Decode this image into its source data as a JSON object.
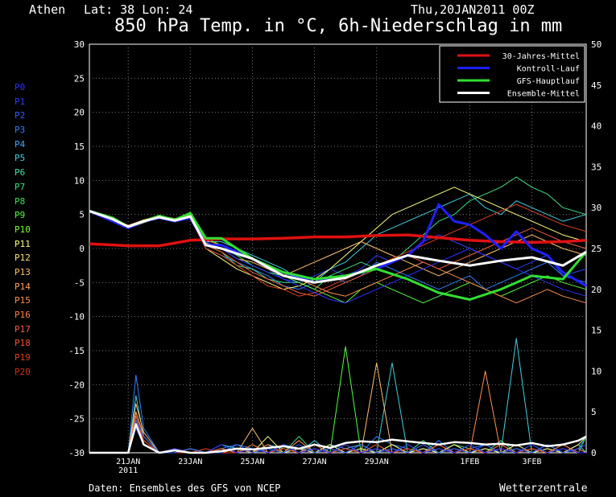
{
  "header": {
    "location": "Athen",
    "coords": "Lat: 38 Lon: 24",
    "date": "Thu,20JAN2011 00Z",
    "title": "850 hPa Temp. in °C, 6h-Niederschlag in mm"
  },
  "footer": {
    "source": "Daten: Ensembles des GFS von NCEP",
    "brand": "Wetterzentrale"
  },
  "members": [
    {
      "label": "P0",
      "color": "#3030ff"
    },
    {
      "label": "P1",
      "color": "#2a40ff"
    },
    {
      "label": "P2",
      "color": "#2a60ff"
    },
    {
      "label": "P3",
      "color": "#3080ff"
    },
    {
      "label": "P4",
      "color": "#40a8ff"
    },
    {
      "label": "P5",
      "color": "#40d0e0"
    },
    {
      "label": "P6",
      "color": "#40e0b0"
    },
    {
      "label": "P7",
      "color": "#40e080"
    },
    {
      "label": "P8",
      "color": "#40e050"
    },
    {
      "label": "P9",
      "color": "#50ff40"
    },
    {
      "label": "P10",
      "color": "#80ff30"
    },
    {
      "label": "P11",
      "color": "#ffff80"
    },
    {
      "label": "P12",
      "color": "#ffe080"
    },
    {
      "label": "P13",
      "color": "#ffc070"
    },
    {
      "label": "P14",
      "color": "#ffa060"
    },
    {
      "label": "P15",
      "color": "#ff9050"
    },
    {
      "label": "P16",
      "color": "#ff8040"
    },
    {
      "label": "P17",
      "color": "#f06040"
    },
    {
      "label": "P18",
      "color": "#f05030"
    },
    {
      "label": "P19",
      "color": "#e04020"
    },
    {
      "label": "P20",
      "color": "#d03010"
    }
  ],
  "chart_data": {
    "type": "line",
    "x_ticks": [
      "21JAN 2011",
      "23JAN",
      "25JAN",
      "27JAN",
      "29JAN",
      "1FEB",
      "3FEB"
    ],
    "x_tick_day": [
      1,
      3,
      5,
      7,
      9,
      12,
      14
    ],
    "x_range_days": [
      -0.25,
      15.75
    ],
    "y_left": {
      "range": [
        -30,
        30
      ],
      "ticks": [
        30,
        25,
        20,
        15,
        10,
        5,
        0,
        -5,
        -10,
        -15,
        -20,
        -25,
        -30
      ],
      "unit": "°C"
    },
    "y_right": {
      "range": [
        0,
        50
      ],
      "ticks": [
        50,
        45,
        40,
        35,
        30,
        25,
        20,
        15,
        10,
        5,
        0
      ],
      "unit": "mm"
    },
    "grid": true,
    "legend_position": "top-right",
    "legend": [
      {
        "label": "30-Jahres-Mittel",
        "color": "#e01010"
      },
      {
        "label": "Kontroll-Lauf",
        "color": "#2020ff"
      },
      {
        "label": "GFS-Hauptlauf",
        "color": "#30e030"
      },
      {
        "label": "Ensemble-Mittel",
        "color": "#ffffff"
      }
    ],
    "temperature_series": [
      {
        "name": "30-Jahres-Mittel",
        "color": "#e01010",
        "width": 3.5,
        "days": [
          -0.25,
          1,
          2,
          3,
          4,
          5,
          6,
          7,
          8,
          9,
          10,
          11,
          12,
          13,
          14,
          15,
          15.75
        ],
        "values": [
          0.7,
          0.4,
          0.4,
          1.2,
          1.4,
          1.4,
          1.5,
          1.7,
          1.7,
          1.9,
          2.0,
          1.6,
          1.2,
          1.0,
          0.9,
          1.0,
          1.2
        ]
      },
      {
        "name": "Kontroll-Lauf",
        "color": "#2020ff",
        "width": 3,
        "days": [
          -0.25,
          0.5,
          1,
          1.5,
          2,
          2.5,
          3,
          3.5,
          4,
          5,
          6,
          7,
          8,
          9,
          10,
          10.5,
          11,
          11.5,
          12,
          12.5,
          13,
          13.5,
          14,
          14.5,
          15,
          15.75
        ],
        "values": [
          5.5,
          4.0,
          3.0,
          4.0,
          4.5,
          4.0,
          4.5,
          0.5,
          0.5,
          -1.5,
          -3.5,
          -5.0,
          -4.0,
          -3.0,
          -1.0,
          1.0,
          6.5,
          4.0,
          3.5,
          2.0,
          0.0,
          2.5,
          0.0,
          -1.0,
          -3.5,
          -5.5
        ]
      },
      {
        "name": "GFS-Hauptlauf",
        "color": "#30e030",
        "width": 3,
        "days": [
          -0.25,
          0.5,
          1,
          1.5,
          2,
          2.5,
          3,
          3.5,
          4,
          5,
          6,
          7,
          8,
          9,
          10,
          11,
          12,
          13,
          14,
          15,
          15.75
        ],
        "values": [
          5.5,
          4.5,
          3.2,
          4.0,
          4.8,
          4.2,
          5.2,
          1.5,
          1.5,
          -1.5,
          -3.5,
          -4.5,
          -4.0,
          -3.0,
          -4.5,
          -6.5,
          -7.5,
          -6.0,
          -4.0,
          -4.5,
          -0.5
        ]
      },
      {
        "name": "Ensemble-Mittel",
        "color": "#ffffff",
        "width": 3,
        "days": [
          -0.25,
          0.5,
          1,
          1.5,
          2,
          2.5,
          3,
          3.5,
          4,
          5,
          6,
          7,
          8,
          9,
          10,
          11,
          12,
          13,
          14,
          15,
          15.75
        ],
        "values": [
          5.5,
          4.3,
          3.2,
          4.0,
          4.6,
          4.1,
          4.7,
          0.5,
          0.0,
          -1.5,
          -4.0,
          -5.0,
          -4.3,
          -2.5,
          -1.0,
          -1.8,
          -2.5,
          -1.8,
          -1.3,
          -2.5,
          -0.5
        ]
      }
    ],
    "member_temperature_days": [
      -0.25,
      0.5,
      1,
      1.5,
      2,
      2.5,
      3,
      3.5,
      4,
      4.5,
      5,
      5.5,
      6,
      6.5,
      7,
      7.5,
      8,
      8.5,
      9,
      9.5,
      10,
      10.5,
      11,
      11.5,
      12,
      12.5,
      13,
      13.5,
      14,
      14.5,
      15,
      15.75
    ],
    "member_temperature_values": [
      [
        5.5,
        4.2,
        3.0,
        4.0,
        4.5,
        4.2,
        4.8,
        0.5,
        0.0,
        -1.0,
        -1.5,
        -3.0,
        -4.5,
        -5.0,
        -4.0,
        -3.0,
        -4.0,
        -3.0,
        -1.0,
        -2.0,
        -1.0,
        1.0,
        2.0,
        1.0,
        0.0,
        -1.0,
        -2.0,
        -3.0,
        -2.0,
        -1.0,
        -4.0,
        -3.0
      ],
      [
        5.5,
        4.0,
        3.2,
        3.8,
        4.5,
        4.0,
        4.6,
        0.0,
        -1.0,
        -2.0,
        -3.0,
        -4.0,
        -5.5,
        -6.0,
        -5.0,
        -4.0,
        -5.0,
        -4.0,
        -2.0,
        -3.0,
        -4.0,
        -5.0,
        -6.0,
        -5.0,
        -4.0,
        -6.0,
        -5.0,
        -4.0,
        -3.0,
        -2.0,
        -4.0,
        -5.0
      ],
      [
        5.5,
        4.4,
        3.1,
        4.1,
        4.6,
        4.3,
        4.5,
        1.0,
        1.0,
        0.0,
        -1.0,
        -2.0,
        -3.0,
        -4.5,
        -5.0,
        -3.0,
        -2.0,
        0.0,
        2.0,
        3.0,
        4.0,
        5.0,
        6.0,
        7.0,
        8.0,
        6.0,
        5.0,
        7.0,
        6.0,
        5.0,
        4.0,
        5.0
      ],
      [
        5.5,
        4.1,
        3.0,
        3.9,
        4.4,
        4.0,
        4.4,
        0.5,
        -0.5,
        -2.5,
        -3.0,
        -4.5,
        -5.0,
        -5.0,
        -6.0,
        -4.0,
        -3.0,
        -2.0,
        -3.0,
        -2.0,
        0.0,
        2.0,
        4.0,
        5.0,
        7.0,
        8.0,
        9.0,
        10.5,
        9.0,
        8.0,
        6.0,
        5.0
      ],
      [
        5.5,
        4.3,
        3.3,
        4.2,
        4.7,
        4.2,
        4.7,
        1.5,
        0.5,
        -1.0,
        -2.5,
        -3.5,
        -4.0,
        -5.0,
        -6.0,
        -7.0,
        -8.0,
        -6.0,
        -5.0,
        -6.0,
        -7.0,
        -8.0,
        -7.0,
        -6.0,
        -5.0,
        -6.0,
        -7.0,
        -6.0,
        -5.0,
        -4.0,
        -5.0,
        -6.0
      ],
      [
        5.5,
        4.2,
        2.9,
        3.8,
        4.5,
        4.1,
        4.5,
        0.0,
        -1.5,
        -3.0,
        -4.0,
        -5.0,
        -6.0,
        -5.5,
        -4.5,
        -3.0,
        -1.0,
        1.0,
        3.0,
        5.0,
        6.0,
        7.0,
        8.0,
        9.0,
        8.0,
        7.0,
        6.0,
        5.0,
        4.0,
        3.0,
        2.0,
        1.0
      ],
      [
        5.5,
        4.0,
        3.1,
        4.0,
        4.6,
        4.3,
        4.6,
        0.8,
        0.0,
        -1.5,
        -2.0,
        -3.0,
        -4.0,
        -3.0,
        -2.0,
        -1.0,
        0.0,
        1.0,
        0.0,
        -1.0,
        -2.0,
        -3.0,
        -4.0,
        -3.0,
        -2.0,
        -1.0,
        0.0,
        1.0,
        2.0,
        1.0,
        0.0,
        -1.0
      ],
      [
        5.5,
        4.4,
        3.4,
        4.2,
        4.8,
        4.4,
        4.9,
        1.2,
        0.5,
        -0.5,
        -1.5,
        -2.5,
        -3.5,
        -4.5,
        -5.5,
        -6.5,
        -7.0,
        -6.0,
        -5.0,
        -4.0,
        -3.0,
        -2.0,
        -3.0,
        -4.0,
        -5.0,
        -6.0,
        -7.0,
        -8.0,
        -7.0,
        -6.0,
        -7.0,
        -8.0
      ],
      [
        5.5,
        4.3,
        3.2,
        4.0,
        4.6,
        4.1,
        4.6,
        0.5,
        -0.5,
        -2.0,
        -3.5,
        -4.5,
        -5.5,
        -6.5,
        -7.0,
        -6.0,
        -5.0,
        -4.0,
        -3.0,
        -2.0,
        -1.0,
        -2.0,
        -3.0,
        -2.0,
        -1.0,
        0.0,
        1.0,
        2.0,
        3.0,
        2.0,
        1.0,
        0.0
      ],
      [
        5.5,
        4.1,
        3.0,
        3.9,
        4.5,
        4.2,
        4.4,
        0.0,
        -1.0,
        -2.5,
        -4.0,
        -5.5,
        -6.0,
        -7.0,
        -6.5,
        -5.5,
        -4.5,
        -3.5,
        -2.5,
        -1.5,
        -0.5,
        0.5,
        1.5,
        2.5,
        3.5,
        4.5,
        5.5,
        6.5,
        5.5,
        4.5,
        3.5,
        2.5
      ],
      [
        5.5,
        4.2,
        3.1,
        4.1,
        4.7,
        4.3,
        4.7,
        1.0,
        0.0,
        -1.5,
        -2.5,
        -3.5,
        -4.5,
        -5.5,
        -6.5,
        -7.5,
        -8.0,
        -7.0,
        -6.0,
        -5.0,
        -4.0,
        -3.0,
        -2.0,
        -1.0,
        0.0,
        -1.0,
        -2.0,
        -3.0,
        -4.0,
        -5.0,
        -6.0,
        -7.0
      ]
    ],
    "member_precip_days": [
      -0.25,
      0.5,
      1,
      1.25,
      1.5,
      2,
      2.5,
      3,
      3.5,
      4,
      4.5,
      5,
      5.5,
      6,
      6.5,
      7,
      7.5,
      8,
      8.5,
      9,
      9.5,
      10,
      10.5,
      11,
      11.5,
      12,
      12.5,
      13,
      13.5,
      14,
      14.5,
      15,
      15.5,
      15.75
    ],
    "member_precip_values": [
      [
        0,
        0,
        0,
        9.5,
        3,
        0,
        0.5,
        0,
        0,
        0.5,
        1,
        0.5,
        0,
        1,
        0.5,
        0,
        1,
        0.5,
        0,
        2,
        1,
        0.5,
        0,
        1.5,
        0,
        0.5,
        1,
        0,
        0.5,
        0,
        1,
        0,
        0.5,
        2
      ],
      [
        0,
        0,
        0,
        7,
        2,
        0,
        0.5,
        0,
        0,
        1,
        0.5,
        0,
        1,
        0.5,
        0,
        1.5,
        0,
        0.5,
        1,
        0,
        11,
        0,
        0.5,
        0,
        1,
        0,
        0.5,
        0,
        14,
        0,
        0.5,
        0,
        1,
        0
      ],
      [
        0,
        0,
        0,
        4,
        1.5,
        0,
        0,
        0.5,
        0,
        0,
        1,
        0,
        0.5,
        0,
        2,
        0,
        1,
        0,
        0.5,
        0,
        1,
        0,
        1.5,
        0,
        1,
        0.5,
        0,
        1.5,
        0,
        0.5,
        0,
        1,
        0,
        2
      ],
      [
        0,
        0,
        0,
        3,
        1,
        0,
        0.5,
        0,
        0,
        0.5,
        0,
        1,
        0,
        0.5,
        0,
        1,
        0,
        13,
        0,
        0.5,
        0,
        1,
        0,
        0.5,
        0,
        1,
        0,
        0.5,
        0,
        1,
        0,
        0.5,
        0,
        0
      ],
      [
        0,
        0,
        0,
        5,
        2,
        0,
        0,
        0.5,
        0,
        0,
        0.5,
        0,
        2,
        0,
        0.5,
        0,
        1,
        0,
        0.5,
        0,
        1,
        0,
        0.5,
        0,
        1,
        0,
        0.5,
        0,
        1,
        0,
        0.5,
        0,
        1,
        2
      ],
      [
        0,
        0,
        0,
        6,
        2.5,
        0,
        0.5,
        0,
        0,
        0.5,
        0,
        3,
        0,
        1,
        0,
        0.5,
        0,
        1,
        0,
        11,
        0,
        0.5,
        0,
        1,
        0,
        0.5,
        0,
        1,
        0,
        0.5,
        0,
        1,
        0,
        0
      ],
      [
        0,
        0,
        0,
        5,
        2,
        0,
        0,
        0.5,
        0,
        0,
        0.5,
        0,
        1,
        0,
        1.5,
        0,
        0.5,
        0,
        1,
        0,
        0.5,
        0,
        1,
        0,
        0.5,
        0,
        10,
        0,
        0.5,
        0,
        1,
        0,
        0.5,
        0
      ],
      [
        0,
        0,
        0,
        4.5,
        1.5,
        0,
        0.5,
        0,
        0,
        0.5,
        0,
        1,
        0,
        0.5,
        0,
        1,
        0,
        0.5,
        0,
        1,
        0,
        0.5,
        0,
        1,
        0,
        0.5,
        0,
        1,
        0,
        0.5,
        0,
        1,
        0,
        0
      ],
      [
        0,
        0,
        0,
        4,
        1.5,
        0,
        0,
        0,
        0.5,
        0,
        0,
        0.5,
        0,
        0.5,
        0,
        0.5,
        0,
        0.5,
        0,
        0.5,
        0,
        0.5,
        0,
        0.5,
        0,
        0.5,
        0,
        0.5,
        0,
        0.5,
        0,
        0.5,
        0,
        0
      ],
      [
        0,
        0,
        0,
        3,
        1,
        0,
        0.5,
        0,
        0,
        1,
        0,
        0.5,
        0,
        1,
        0,
        0.5,
        0,
        1,
        0,
        0.5,
        0,
        1,
        0,
        0.5,
        0,
        1,
        0,
        0.5,
        0,
        1,
        0,
        0.5,
        0,
        0
      ],
      [
        0,
        0,
        0,
        4,
        2,
        0,
        0,
        0.5,
        0,
        0,
        1,
        0,
        0.5,
        0,
        1,
        0,
        0.5,
        0,
        1,
        0,
        0.5,
        0,
        1,
        0,
        0.5,
        0,
        1,
        0,
        0.5,
        0,
        1,
        0,
        0.5,
        1
      ]
    ],
    "ensemble_mean_precip": {
      "days": [
        -0.25,
        0.5,
        1,
        1.25,
        1.5,
        2,
        2.5,
        3,
        3.5,
        4,
        4.5,
        5,
        5.5,
        6,
        6.5,
        7,
        7.5,
        8,
        8.5,
        9,
        9.5,
        10,
        10.5,
        11,
        11.5,
        12,
        12.5,
        13,
        13.5,
        14,
        14.5,
        15,
        15.5,
        15.75
      ],
      "values": [
        0,
        0,
        0,
        3.5,
        1,
        0,
        0.3,
        0,
        0,
        0.2,
        0.5,
        0.4,
        0.6,
        0.8,
        0.5,
        1.0,
        0.6,
        1.2,
        1.4,
        1.3,
        1.6,
        1.4,
        1.2,
        1.0,
        1.3,
        1.2,
        1.0,
        1.1,
        0.9,
        1.2,
        0.8,
        1.0,
        1.5,
        2.0
      ]
    }
  }
}
